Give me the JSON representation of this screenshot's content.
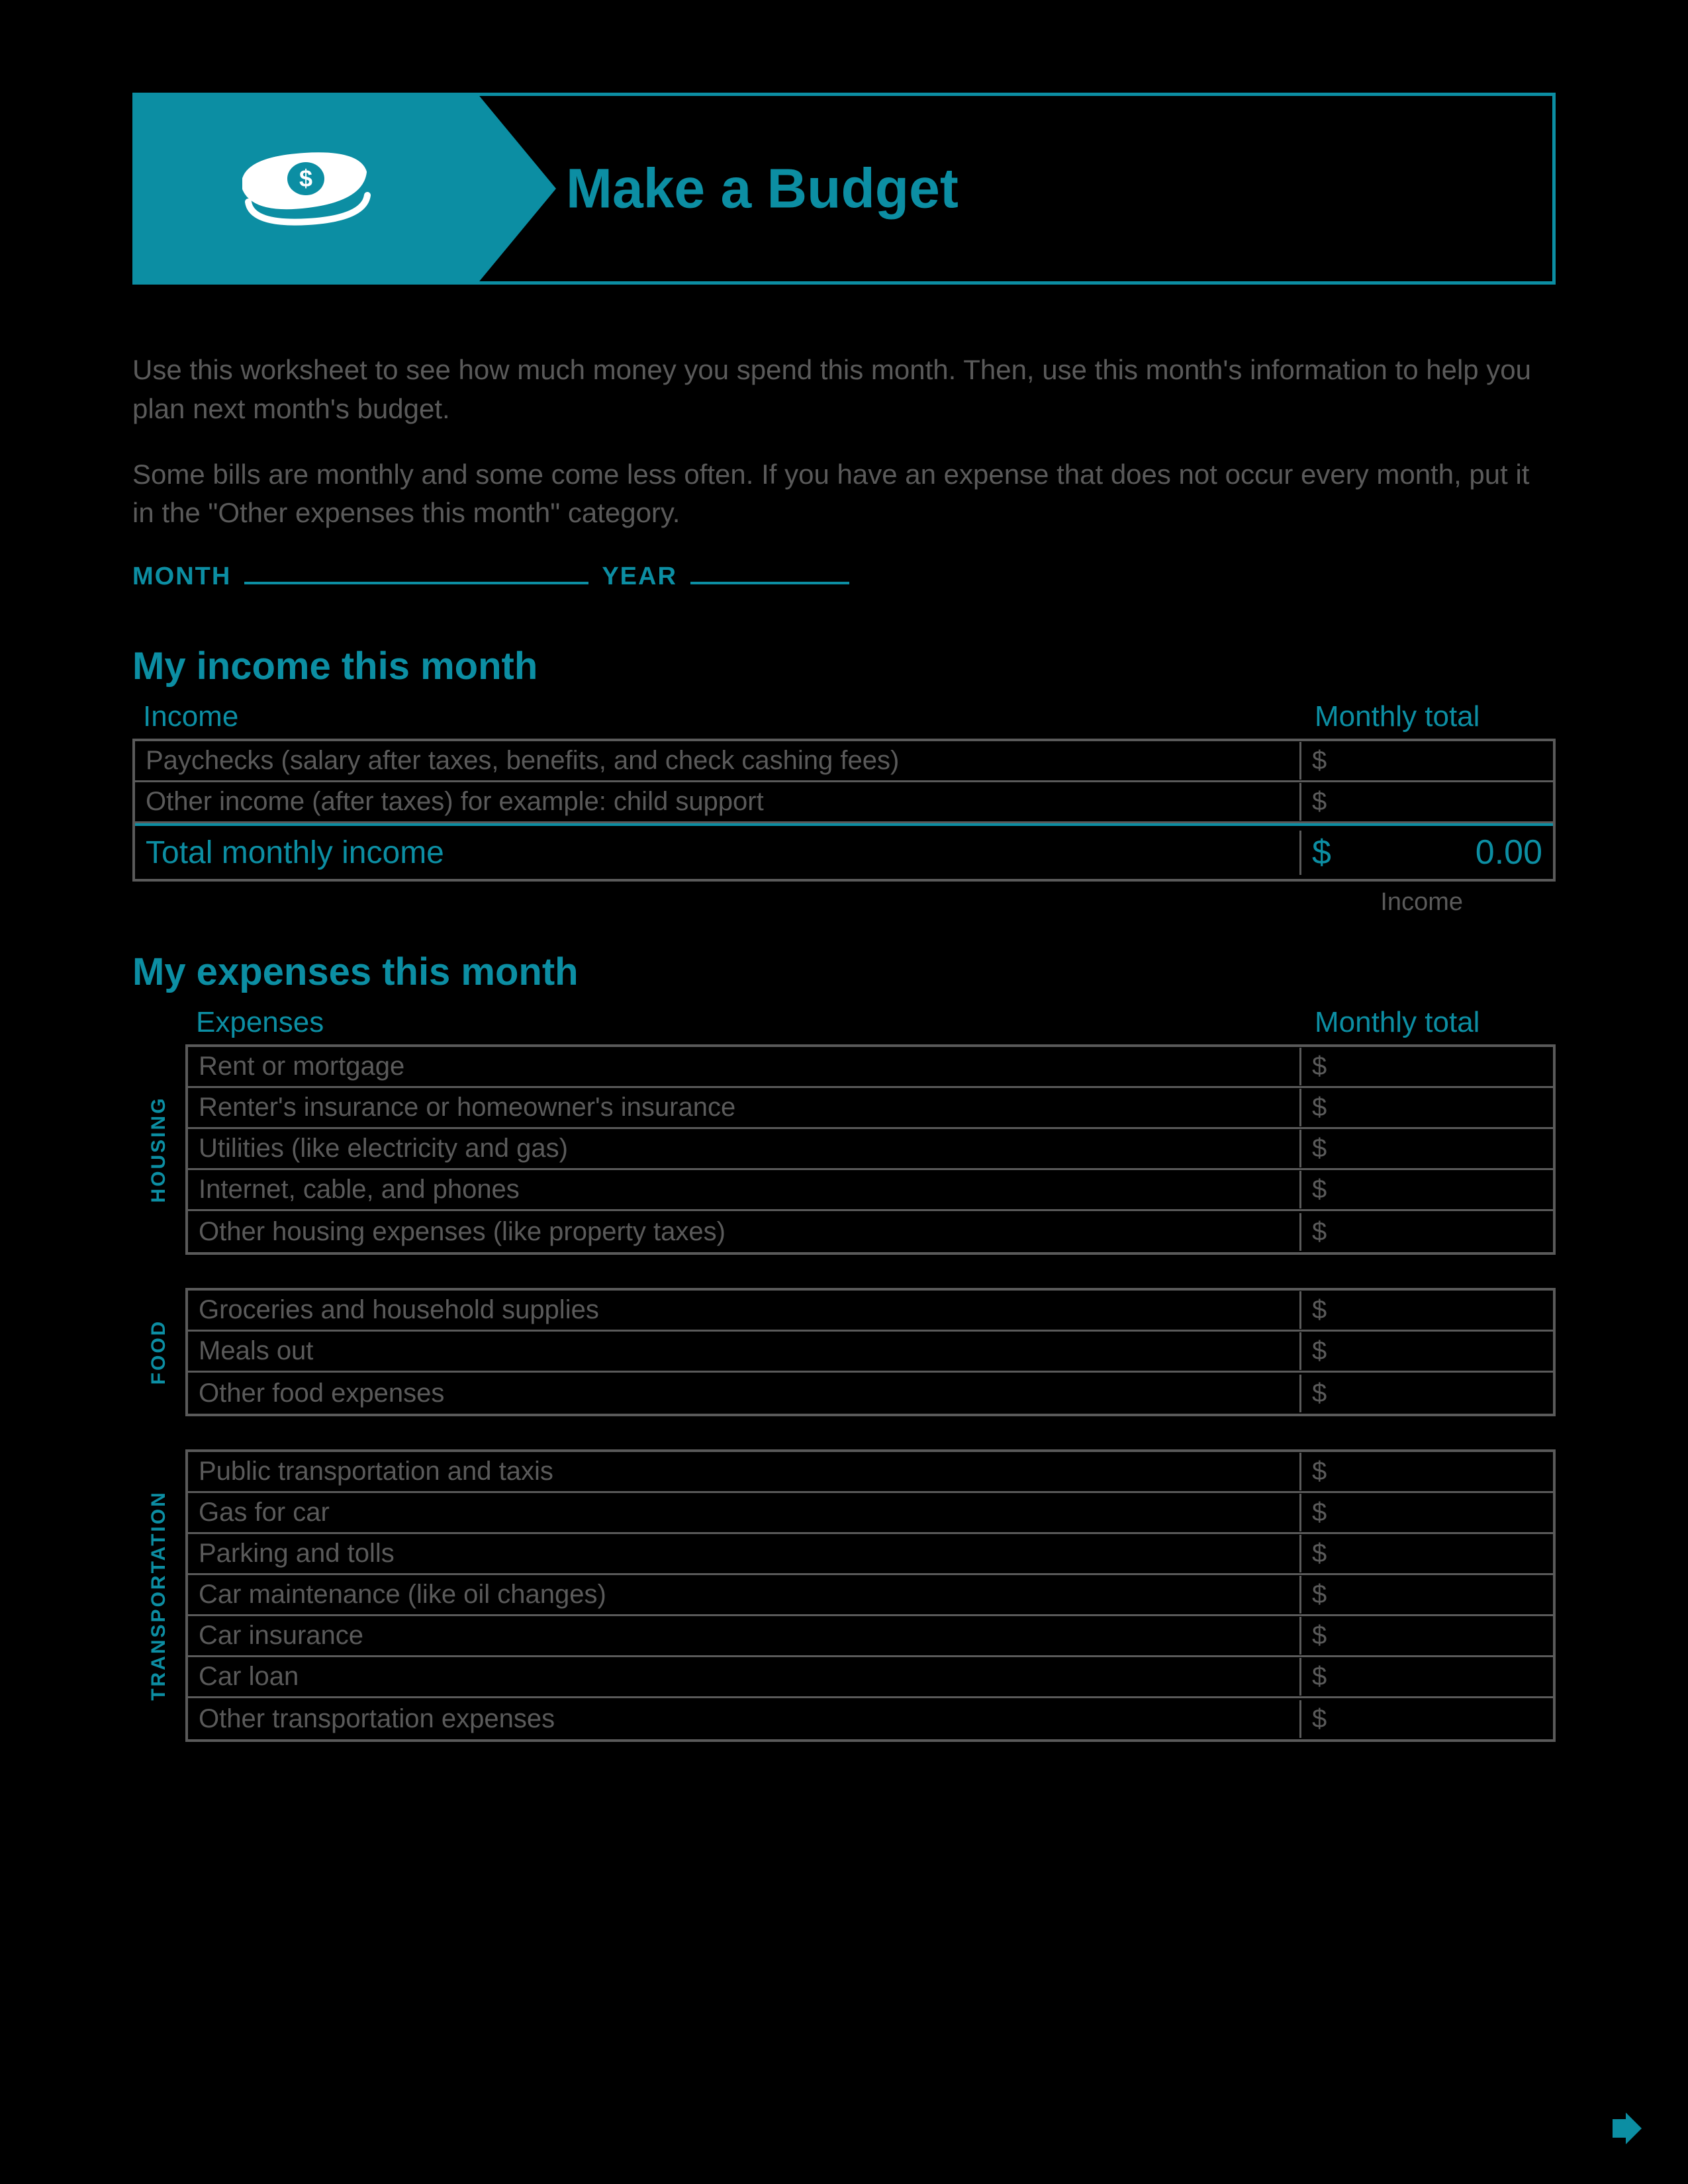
{
  "colors": {
    "accent": "#0c8ea3",
    "text_muted": "#5a5a5a",
    "background": "#000000"
  },
  "header": {
    "title": "Make a Budget",
    "icon": "money-icon"
  },
  "intro": {
    "p1": "Use this worksheet to see how much money you spend this month. Then, use this month's information to help you plan next month's budget.",
    "p2": "Some bills are monthly and some come less often. If you have an expense that does not occur every month, put it in the \"Other expenses this month\" category."
  },
  "date": {
    "month_label": "MONTH",
    "year_label": "YEAR",
    "month_value": "",
    "year_value": ""
  },
  "income": {
    "section_title": "My income this month",
    "col_left": "Income",
    "col_right": "Monthly total",
    "rows": [
      {
        "label": "Paychecks (salary after taxes, benefits, and check cashing fees)",
        "currency": "$",
        "value": ""
      },
      {
        "label": "Other income (after taxes) for example: child support",
        "currency": "$",
        "value": ""
      }
    ],
    "total": {
      "label": "Total monthly income",
      "currency": "$",
      "value": "0.00"
    },
    "footer": "Income"
  },
  "expenses": {
    "section_title": "My expenses this month",
    "col_left": "Expenses",
    "col_right": "Monthly total",
    "groups": [
      {
        "category": "HOUSING",
        "rows": [
          {
            "label": "Rent or mortgage",
            "currency": "$",
            "value": ""
          },
          {
            "label": "Renter's insurance or homeowner's insurance",
            "currency": "$",
            "value": ""
          },
          {
            "label": "Utilities (like electricity and gas)",
            "currency": "$",
            "value": ""
          },
          {
            "label": "Internet, cable, and phones",
            "currency": "$",
            "value": ""
          },
          {
            "label": "Other housing expenses (like property taxes)",
            "currency": "$",
            "value": ""
          }
        ]
      },
      {
        "category": "FOOD",
        "rows": [
          {
            "label": "Groceries and household supplies",
            "currency": "$",
            "value": ""
          },
          {
            "label": "Meals out",
            "currency": "$",
            "value": ""
          },
          {
            "label": "Other food expenses",
            "currency": "$",
            "value": ""
          }
        ]
      },
      {
        "category": "TRANSPORTATION",
        "rows": [
          {
            "label": "Public transportation and taxis",
            "currency": "$",
            "value": ""
          },
          {
            "label": "Gas for car",
            "currency": "$",
            "value": ""
          },
          {
            "label": "Parking and tolls",
            "currency": "$",
            "value": ""
          },
          {
            "label": "Car maintenance (like oil changes)",
            "currency": "$",
            "value": ""
          },
          {
            "label": "Car insurance",
            "currency": "$",
            "value": ""
          },
          {
            "label": "Car loan",
            "currency": "$",
            "value": ""
          },
          {
            "label": "Other transportation expenses",
            "currency": "$",
            "value": ""
          }
        ]
      }
    ]
  }
}
